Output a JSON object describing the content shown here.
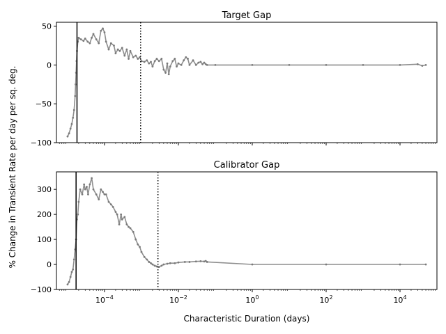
{
  "figure": {
    "shared_ylabel": "% Change in Transient Rate per day per sq. deg.",
    "shared_xlabel": "Characteristic Duration (days)"
  },
  "chart_data": [
    {
      "type": "scatter",
      "title": "Target Gap",
      "xlabel": "",
      "ylabel": "",
      "xscale": "log",
      "xlim": [
        5e-06,
        100000
      ],
      "ylim": [
        -100,
        55
      ],
      "yticks": [
        -100,
        -50,
        0,
        50
      ],
      "ytick_labels": [
        "−100",
        "−50",
        "0",
        "50"
      ],
      "xticks": [
        0.0001,
        0.01,
        1,
        100,
        10000
      ],
      "xtick_labels": [],
      "grid": false,
      "marker_color": "#7a7a7a",
      "vlines": [
        {
          "x": 1.8e-05,
          "style": "solid"
        },
        {
          "x": 0.00095,
          "style": "dotted"
        }
      ],
      "series": [
        {
          "name": "",
          "x": [
            1e-05,
            1.1e-05,
            1.2e-05,
            1.3e-05,
            1.4e-05,
            1.5e-05,
            1.6e-05,
            1.65e-05,
            1.7e-05,
            1.75e-05,
            1.8e-05,
            1.9e-05,
            2e-05,
            2.3e-05,
            2.7e-05,
            3e-05,
            3.5e-05,
            4e-05,
            4.5e-05,
            5e-05,
            6e-05,
            7e-05,
            8e-05,
            9e-05,
            0.0001,
            0.00011,
            0.00013,
            0.00015,
            0.00018,
            0.0002,
            0.00023,
            0.00026,
            0.0003,
            0.00035,
            0.0004,
            0.00045,
            0.0005,
            0.0006,
            0.0007,
            0.0008,
            0.0009,
            0.001,
            0.0012,
            0.0014,
            0.0016,
            0.0018,
            0.002,
            0.0023,
            0.0026,
            0.003,
            0.0035,
            0.004,
            0.0045,
            0.005,
            0.0055,
            0.006,
            0.007,
            0.008,
            0.009,
            0.01,
            0.012,
            0.014,
            0.016,
            0.018,
            0.02,
            0.025,
            0.03,
            0.035,
            0.04,
            0.045,
            0.05,
            0.055,
            0.06,
            0.1,
            1,
            10,
            100,
            1000,
            10000,
            30000,
            40000,
            50000
          ],
          "y": [
            -92,
            -88,
            -82,
            -76,
            -68,
            -58,
            -40,
            -25,
            -10,
            5,
            18,
            30,
            35,
            33,
            31,
            34,
            30,
            28,
            35,
            40,
            33,
            28,
            44,
            47,
            42,
            30,
            20,
            28,
            25,
            15,
            20,
            18,
            22,
            12,
            20,
            8,
            18,
            10,
            12,
            8,
            10,
            5,
            4,
            6,
            2,
            4,
            -2,
            5,
            8,
            5,
            8,
            -6,
            -10,
            2,
            -12,
            -2,
            5,
            8,
            -2,
            2,
            0,
            6,
            10,
            8,
            0,
            6,
            0,
            3,
            4,
            1,
            3,
            1,
            0,
            0,
            0,
            0,
            0,
            0,
            0,
            1,
            -1,
            0
          ]
        }
      ]
    },
    {
      "type": "scatter",
      "title": "Calibrator Gap",
      "xlabel": "Characteristic Duration (days)",
      "ylabel": "",
      "xscale": "log",
      "xlim": [
        5e-06,
        100000
      ],
      "ylim": [
        -100,
        370
      ],
      "yticks": [
        -100,
        0,
        100,
        200,
        300
      ],
      "ytick_labels": [
        "−100",
        "0",
        "100",
        "200",
        "300"
      ],
      "xticks": [
        0.0001,
        0.01,
        1,
        100,
        10000
      ],
      "xtick_labels": [
        "10−4",
        "10−2",
        "100",
        "102",
        "104"
      ],
      "grid": false,
      "marker_color": "#7a7a7a",
      "vlines": [
        {
          "x": 1.7e-05,
          "style": "solid"
        },
        {
          "x": 0.0028,
          "style": "dotted"
        }
      ],
      "series": [
        {
          "name": "",
          "x": [
            1e-05,
            1.1e-05,
            1.2e-05,
            1.3e-05,
            1.4e-05,
            1.5e-05,
            1.6e-05,
            1.7e-05,
            1.8e-05,
            1.9e-05,
            2e-05,
            2.2e-05,
            2.5e-05,
            2.8e-05,
            3e-05,
            3.3e-05,
            3.6e-05,
            4e-05,
            4.5e-05,
            5e-05,
            6e-05,
            7e-05,
            8e-05,
            9e-05,
            0.0001,
            0.00011,
            0.00013,
            0.00015,
            0.00017,
            0.0002,
            0.00022,
            0.00025,
            0.00028,
            0.0003,
            0.00035,
            0.0004,
            0.00045,
            0.0005,
            0.0006,
            0.0007,
            0.0008,
            0.0009,
            0.001,
            0.0012,
            0.0014,
            0.0016,
            0.0018,
            0.002,
            0.0023,
            0.0026,
            0.003,
            0.0035,
            0.004,
            0.005,
            0.006,
            0.008,
            0.01,
            0.015,
            0.02,
            0.03,
            0.04,
            0.05,
            0.055,
            0.06,
            1,
            100,
            10000,
            50000
          ],
          "y": [
            -80,
            -70,
            -50,
            -30,
            -20,
            20,
            60,
            100,
            180,
            200,
            250,
            300,
            280,
            320,
            300,
            310,
            280,
            320,
            345,
            300,
            280,
            260,
            300,
            290,
            280,
            280,
            250,
            240,
            230,
            210,
            200,
            160,
            200,
            180,
            190,
            160,
            150,
            145,
            130,
            100,
            80,
            70,
            50,
            30,
            20,
            10,
            5,
            0,
            -5,
            -8,
            -10,
            -5,
            0,
            3,
            5,
            5,
            8,
            10,
            10,
            12,
            13,
            12,
            14,
            10,
            0,
            0,
            0,
            0
          ]
        }
      ]
    }
  ]
}
